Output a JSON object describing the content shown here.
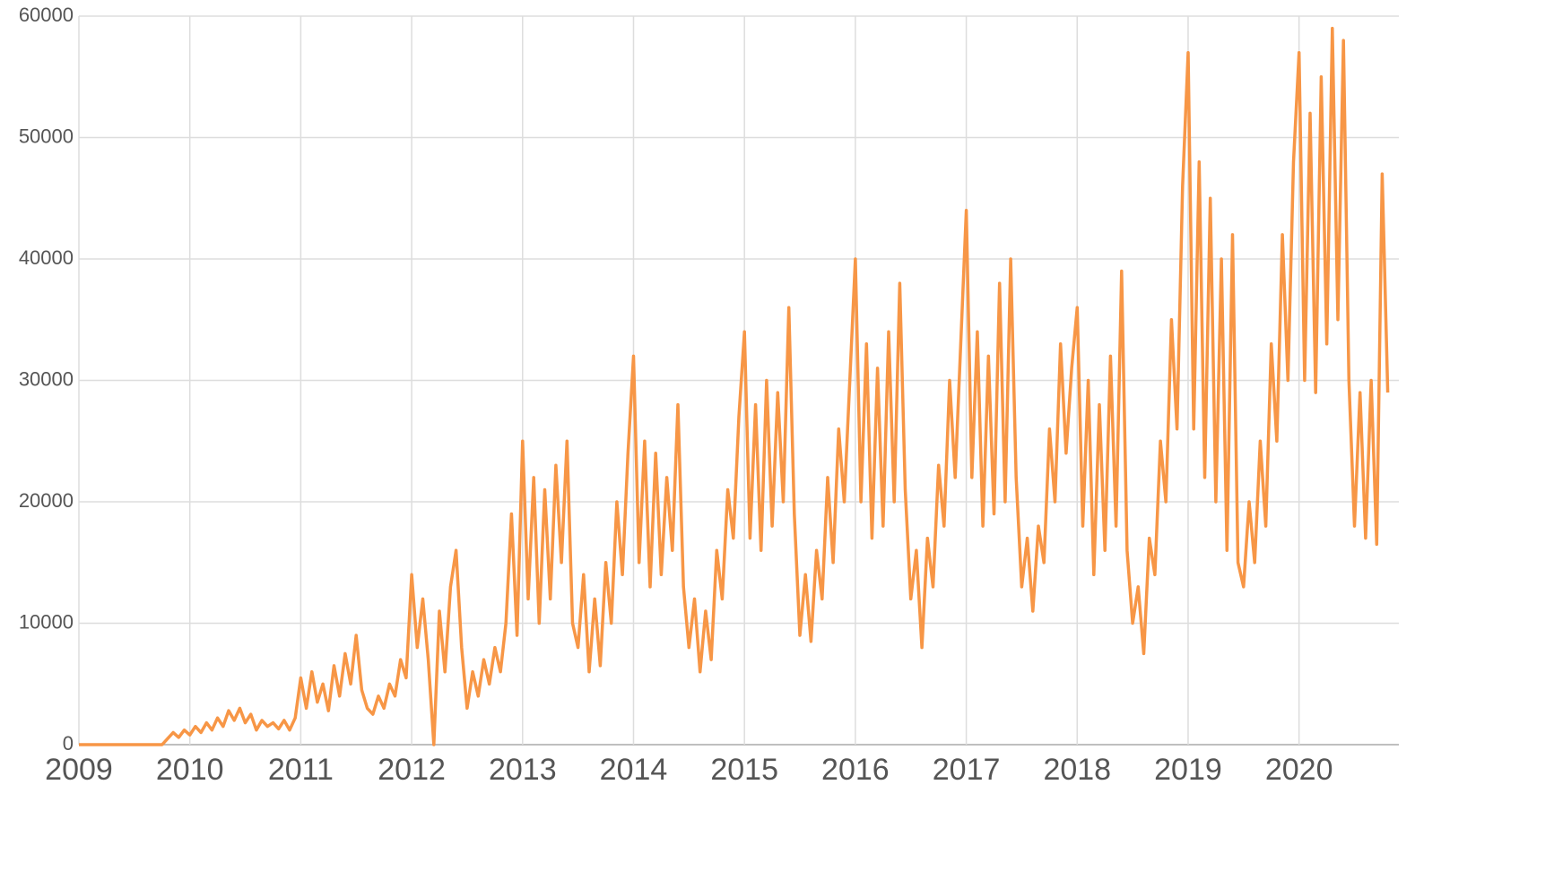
{
  "chart_data": {
    "type": "line",
    "xlim": [
      2009,
      2020.9
    ],
    "xticks": [
      2009,
      2010,
      2011,
      2012,
      2013,
      2014,
      2015,
      2016,
      2017,
      2018,
      2019,
      2020
    ],
    "ylim": [
      0,
      60000
    ],
    "yticks": [
      0,
      10000,
      20000,
      30000,
      40000,
      50000,
      60000
    ],
    "grid": true,
    "x": [
      2009,
      2009.05,
      2009.1,
      2009.15,
      2009.2,
      2009.25,
      2009.3,
      2009.35,
      2009.4,
      2009.45,
      2009.5,
      2009.55,
      2009.6,
      2009.65,
      2009.7,
      2009.75,
      2009.8,
      2009.85,
      2009.9,
      2009.95,
      2010,
      2010.05,
      2010.1,
      2010.15,
      2010.2,
      2010.25,
      2010.3,
      2010.35,
      2010.4,
      2010.45,
      2010.5,
      2010.55,
      2010.6,
      2010.65,
      2010.7,
      2010.75,
      2010.8,
      2010.85,
      2010.9,
      2010.95,
      2011,
      2011.05,
      2011.1,
      2011.15,
      2011.2,
      2011.25,
      2011.3,
      2011.35,
      2011.4,
      2011.45,
      2011.5,
      2011.55,
      2011.6,
      2011.65,
      2011.7,
      2011.75,
      2011.8,
      2011.85,
      2011.9,
      2011.95,
      2012,
      2012.05,
      2012.1,
      2012.15,
      2012.2,
      2012.25,
      2012.3,
      2012.35,
      2012.4,
      2012.45,
      2012.5,
      2012.55,
      2012.6,
      2012.65,
      2012.7,
      2012.75,
      2012.8,
      2012.85,
      2012.9,
      2012.95,
      2013,
      2013.05,
      2013.1,
      2013.15,
      2013.2,
      2013.25,
      2013.3,
      2013.35,
      2013.4,
      2013.45,
      2013.5,
      2013.55,
      2013.6,
      2013.65,
      2013.7,
      2013.75,
      2013.8,
      2013.85,
      2013.9,
      2013.95,
      2014,
      2014.05,
      2014.1,
      2014.15,
      2014.2,
      2014.25,
      2014.3,
      2014.35,
      2014.4,
      2014.45,
      2014.5,
      2014.55,
      2014.6,
      2014.65,
      2014.7,
      2014.75,
      2014.8,
      2014.85,
      2014.9,
      2014.95,
      2015,
      2015.05,
      2015.1,
      2015.15,
      2015.2,
      2015.25,
      2015.3,
      2015.35,
      2015.4,
      2015.45,
      2015.5,
      2015.55,
      2015.6,
      2015.65,
      2015.7,
      2015.75,
      2015.8,
      2015.85,
      2015.9,
      2015.95,
      2016,
      2016.05,
      2016.1,
      2016.15,
      2016.2,
      2016.25,
      2016.3,
      2016.35,
      2016.4,
      2016.45,
      2016.5,
      2016.55,
      2016.6,
      2016.65,
      2016.7,
      2016.75,
      2016.8,
      2016.85,
      2016.9,
      2016.95,
      2017,
      2017.05,
      2017.1,
      2017.15,
      2017.2,
      2017.25,
      2017.3,
      2017.35,
      2017.4,
      2017.45,
      2017.5,
      2017.55,
      2017.6,
      2017.65,
      2017.7,
      2017.75,
      2017.8,
      2017.85,
      2017.9,
      2017.95,
      2018,
      2018.05,
      2018.1,
      2018.15,
      2018.2,
      2018.25,
      2018.3,
      2018.35,
      2018.4,
      2018.45,
      2018.5,
      2018.55,
      2018.6,
      2018.65,
      2018.7,
      2018.75,
      2018.8,
      2018.85,
      2018.9,
      2018.95,
      2019,
      2019.05,
      2019.1,
      2019.15,
      2019.2,
      2019.25,
      2019.3,
      2019.35,
      2019.4,
      2019.45,
      2019.5,
      2019.55,
      2019.6,
      2019.65,
      2019.7,
      2019.75,
      2019.8,
      2019.85,
      2019.9,
      2019.95,
      2020,
      2020.05,
      2020.1,
      2020.15,
      2020.2,
      2020.25,
      2020.3,
      2020.35,
      2020.4,
      2020.45,
      2020.5,
      2020.55,
      2020.6,
      2020.65,
      2020.7,
      2020.75,
      2020.8
    ],
    "series": [
      {
        "color": "#f79646",
        "values": [
          0,
          0,
          0,
          0,
          0,
          0,
          0,
          0,
          0,
          0,
          0,
          0,
          0,
          0,
          0,
          0,
          500,
          1000,
          600,
          1200,
          800,
          1500,
          1000,
          1800,
          1200,
          2200,
          1500,
          2800,
          2000,
          3000,
          1800,
          2500,
          1200,
          2000,
          1500,
          1800,
          1300,
          2000,
          1200,
          2200,
          5500,
          3000,
          6000,
          3500,
          5000,
          2800,
          6500,
          4000,
          7500,
          5000,
          9000,
          4500,
          3000,
          2500,
          4000,
          3000,
          5000,
          4000,
          7000,
          5500,
          14000,
          8000,
          12000,
          7000,
          0,
          11000,
          6000,
          13000,
          16000,
          8000,
          3000,
          6000,
          4000,
          7000,
          5000,
          8000,
          6000,
          10000,
          19000,
          9000,
          25000,
          12000,
          22000,
          10000,
          21000,
          12000,
          23000,
          15000,
          25000,
          10000,
          8000,
          14000,
          6000,
          12000,
          6500,
          15000,
          10000,
          20000,
          14000,
          24000,
          32000,
          15000,
          25000,
          13000,
          24000,
          14000,
          22000,
          16000,
          28000,
          13000,
          8000,
          12000,
          6000,
          11000,
          7000,
          16000,
          12000,
          21000,
          17000,
          27000,
          34000,
          17000,
          28000,
          16000,
          30000,
          18000,
          29000,
          20000,
          36000,
          19000,
          9000,
          14000,
          8500,
          16000,
          12000,
          22000,
          15000,
          26000,
          20000,
          30000,
          40000,
          20000,
          33000,
          17000,
          31000,
          18000,
          34000,
          20000,
          38000,
          21000,
          12000,
          16000,
          8000,
          17000,
          13000,
          23000,
          18000,
          30000,
          22000,
          33000,
          44000,
          22000,
          34000,
          18000,
          32000,
          19000,
          38000,
          20000,
          40000,
          22000,
          13000,
          17000,
          11000,
          18000,
          15000,
          26000,
          20000,
          33000,
          24000,
          31000,
          36000,
          18000,
          30000,
          14000,
          28000,
          16000,
          32000,
          18000,
          39000,
          16000,
          10000,
          13000,
          7500,
          17000,
          14000,
          25000,
          20000,
          35000,
          26000,
          46000,
          57000,
          26000,
          48000,
          22000,
          45000,
          20000,
          40000,
          16000,
          42000,
          15000,
          13000,
          20000,
          15000,
          25000,
          18000,
          33000,
          25000,
          42000,
          30000,
          48000,
          57000,
          30000,
          52000,
          29000,
          55000,
          33000,
          59000,
          35000,
          58000,
          30000,
          18000,
          29000,
          17000,
          30000,
          16500,
          47000,
          29000
        ]
      }
    ]
  }
}
